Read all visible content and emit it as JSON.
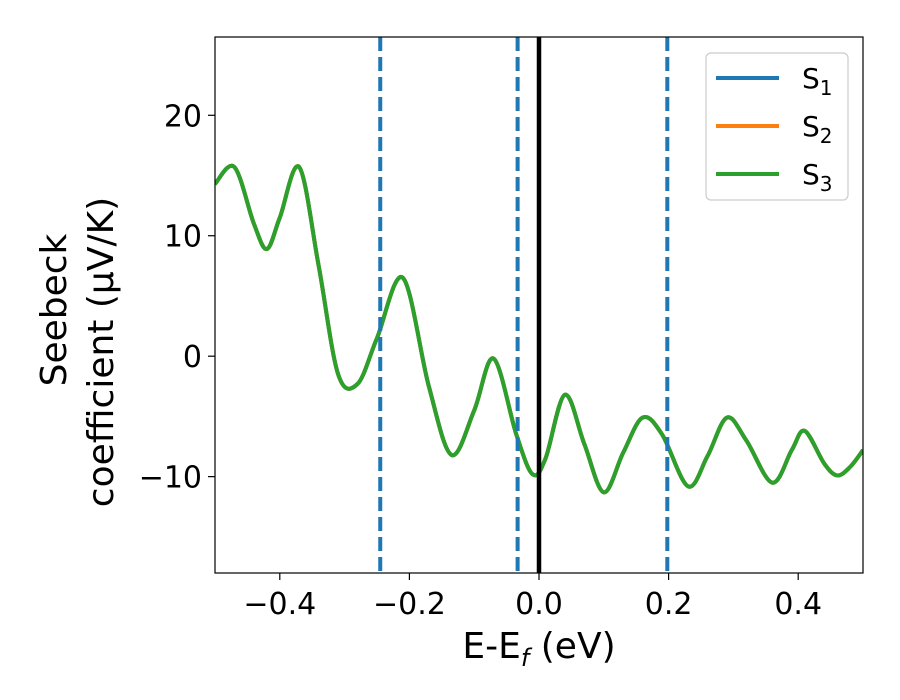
{
  "chart_data": {
    "type": "line",
    "xlabel": {
      "main": "E-E",
      "sub": "f",
      "unit": " (eV)"
    },
    "ylabel": {
      "line1": "Seebeck",
      "line2": "coefficient  (μV/K)"
    },
    "xlim": [
      -0.5,
      0.5
    ],
    "ylim": [
      -18,
      26.5
    ],
    "xticks": [
      -0.4,
      -0.2,
      0.0,
      0.2,
      0.4
    ],
    "xtick_labels": [
      "−0.4",
      "−0.2",
      "0.0",
      "0.2",
      "0.4"
    ],
    "yticks": [
      -10,
      0,
      10,
      20
    ],
    "ytick_labels": [
      "−10",
      "0",
      "10",
      "20"
    ],
    "grid": false,
    "legend": {
      "position": "upper right"
    },
    "vlines": [
      {
        "x": -0.245,
        "style": "dashed",
        "color": "#1f77b4"
      },
      {
        "x": -0.033,
        "style": "dashed",
        "color": "#1f77b4"
      },
      {
        "x": 0.0,
        "style": "solid",
        "color": "#000000"
      },
      {
        "x": 0.198,
        "style": "dashed",
        "color": "#1f77b4"
      }
    ],
    "x": [
      -0.5,
      -0.47,
      -0.44,
      -0.42,
      -0.4,
      -0.37,
      -0.34,
      -0.31,
      -0.28,
      -0.25,
      -0.21,
      -0.17,
      -0.135,
      -0.1,
      -0.07,
      -0.035,
      -0.01,
      0.01,
      0.04,
      0.07,
      0.1,
      0.13,
      0.16,
      0.19,
      0.23,
      0.26,
      0.29,
      0.32,
      0.36,
      0.39,
      0.41,
      0.44,
      0.46,
      0.48,
      0.5
    ],
    "series": [
      {
        "name": "S",
        "sub": "1",
        "color": "#1f77b4",
        "values": [
          14.3,
          15.7,
          11.0,
          8.9,
          11.5,
          15.7,
          7.5,
          -1.5,
          -2.3,
          1.5,
          6.5,
          -2.5,
          -8.2,
          -4.5,
          -0.2,
          -6.5,
          -9.8,
          -8.5,
          -3.2,
          -7.3,
          -11.3,
          -8.0,
          -5.1,
          -6.5,
          -10.8,
          -8.3,
          -5.1,
          -7.0,
          -10.5,
          -7.8,
          -6.2,
          -8.9,
          -9.9,
          -9.2,
          -7.8
        ]
      },
      {
        "name": "S",
        "sub": "2",
        "color": "#ff7f0e",
        "values": [
          14.3,
          15.7,
          11.0,
          8.9,
          11.5,
          15.7,
          7.5,
          -1.5,
          -2.3,
          1.5,
          6.5,
          -2.5,
          -8.2,
          -4.5,
          -0.2,
          -6.5,
          -9.8,
          -8.5,
          -3.2,
          -7.3,
          -11.3,
          -8.0,
          -5.1,
          -6.5,
          -10.8,
          -8.3,
          -5.1,
          -7.0,
          -10.5,
          -7.8,
          -6.2,
          -8.9,
          -9.9,
          -9.2,
          -7.8
        ]
      },
      {
        "name": "S",
        "sub": "3",
        "color": "#2ca02c",
        "values": [
          14.3,
          15.7,
          11.0,
          8.9,
          11.5,
          15.7,
          7.5,
          -1.5,
          -2.3,
          1.5,
          6.5,
          -2.5,
          -8.2,
          -4.5,
          -0.2,
          -6.5,
          -9.8,
          -8.5,
          -3.2,
          -7.3,
          -11.3,
          -8.0,
          -5.1,
          -6.5,
          -10.8,
          -8.3,
          -5.1,
          -7.0,
          -10.5,
          -7.8,
          -6.2,
          -8.9,
          -9.9,
          -9.2,
          -7.8
        ]
      }
    ]
  }
}
